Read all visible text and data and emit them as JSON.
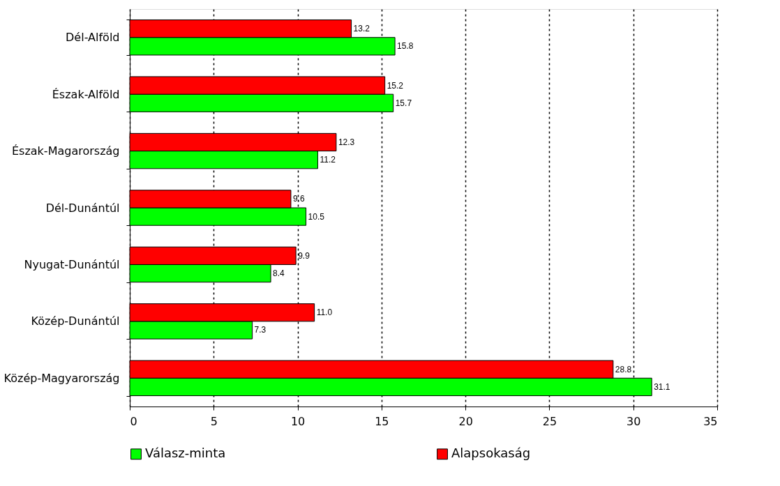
{
  "chart_data": {
    "type": "bar",
    "orientation": "horizontal",
    "categories": [
      "Dél-Alföld",
      "Észak-Alföld",
      "Észak-Magarország",
      "Dél-Dunántúl",
      "Nyugat-Dunántúl",
      "Közép-Dunántúl",
      "Közép-Magyarország"
    ],
    "series": [
      {
        "name": "Válasz-minta",
        "color": "#00ff00",
        "values": [
          15.8,
          15.7,
          11.2,
          10.5,
          8.4,
          7.3,
          31.1
        ],
        "value_labels": [
          "15.8",
          "15.7",
          "11.2",
          "10.5",
          "8.4",
          "7.3",
          "31.1"
        ]
      },
      {
        "name": "Alapsokaság",
        "color": "#ff0000",
        "values": [
          13.2,
          15.2,
          12.3,
          9.6,
          9.9,
          11.0,
          28.8
        ],
        "value_labels": [
          "13.2",
          "15.2",
          "12.3",
          "9.6",
          "9.9",
          "11.0",
          "28.8"
        ]
      }
    ],
    "xlim": [
      0,
      35
    ],
    "xticks": [
      0,
      5,
      10,
      15,
      20,
      25,
      30,
      35
    ],
    "grid": "x",
    "legend": "bottom"
  }
}
